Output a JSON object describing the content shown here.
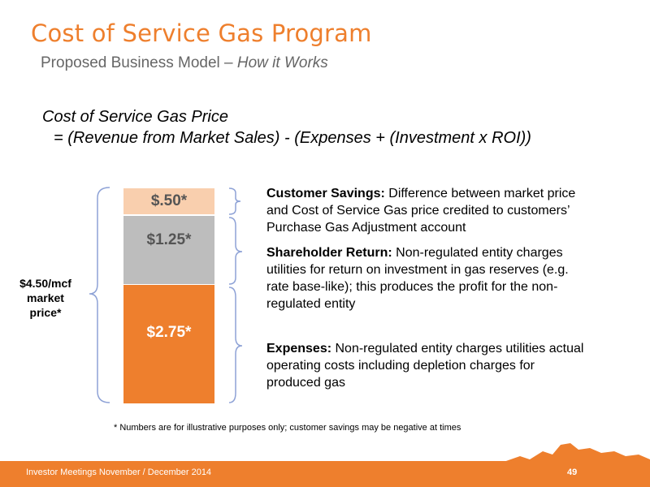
{
  "slide": {
    "title": "Cost of Service Gas Program",
    "subtitle_main": "Proposed Business Model – ",
    "subtitle_italic": "How it Works",
    "formula_line1": "Cost of Service Gas Price",
    "formula_line2": "= (Revenue from Market Sales) - (Expenses + (Investment x ROI))"
  },
  "stack": {
    "savings_value": "$.50*",
    "return_value": "$1.25*",
    "expenses_value": "$2.75*",
    "market_price_label": "$4.50/mcf market price*",
    "colors": {
      "savings": "#F9CFAE",
      "return": "#BDBDBD",
      "expenses": "#EE7F2D",
      "brace": "#8EA2D6"
    }
  },
  "descriptions": {
    "savings_heading": "Customer Savings:",
    "savings_text": " Difference between market price and Cost of Service Gas price credited to customers’ Purchase Gas Adjustment account",
    "return_heading": "Shareholder Return:",
    "return_text": " Non-regulated entity charges utilities for return on investment in gas reserves (e.g. rate base-like); this produces the profit for the non-regulated entity",
    "expenses_heading": "Expenses:",
    "expenses_text": " Non-regulated entity charges utilities actual operating costs including depletion charges for produced gas"
  },
  "footnote": "* Numbers are for illustrative purposes only; customer savings may be negative at times",
  "footer": {
    "text": "Investor Meetings November / December 2014",
    "page_number": "49"
  }
}
